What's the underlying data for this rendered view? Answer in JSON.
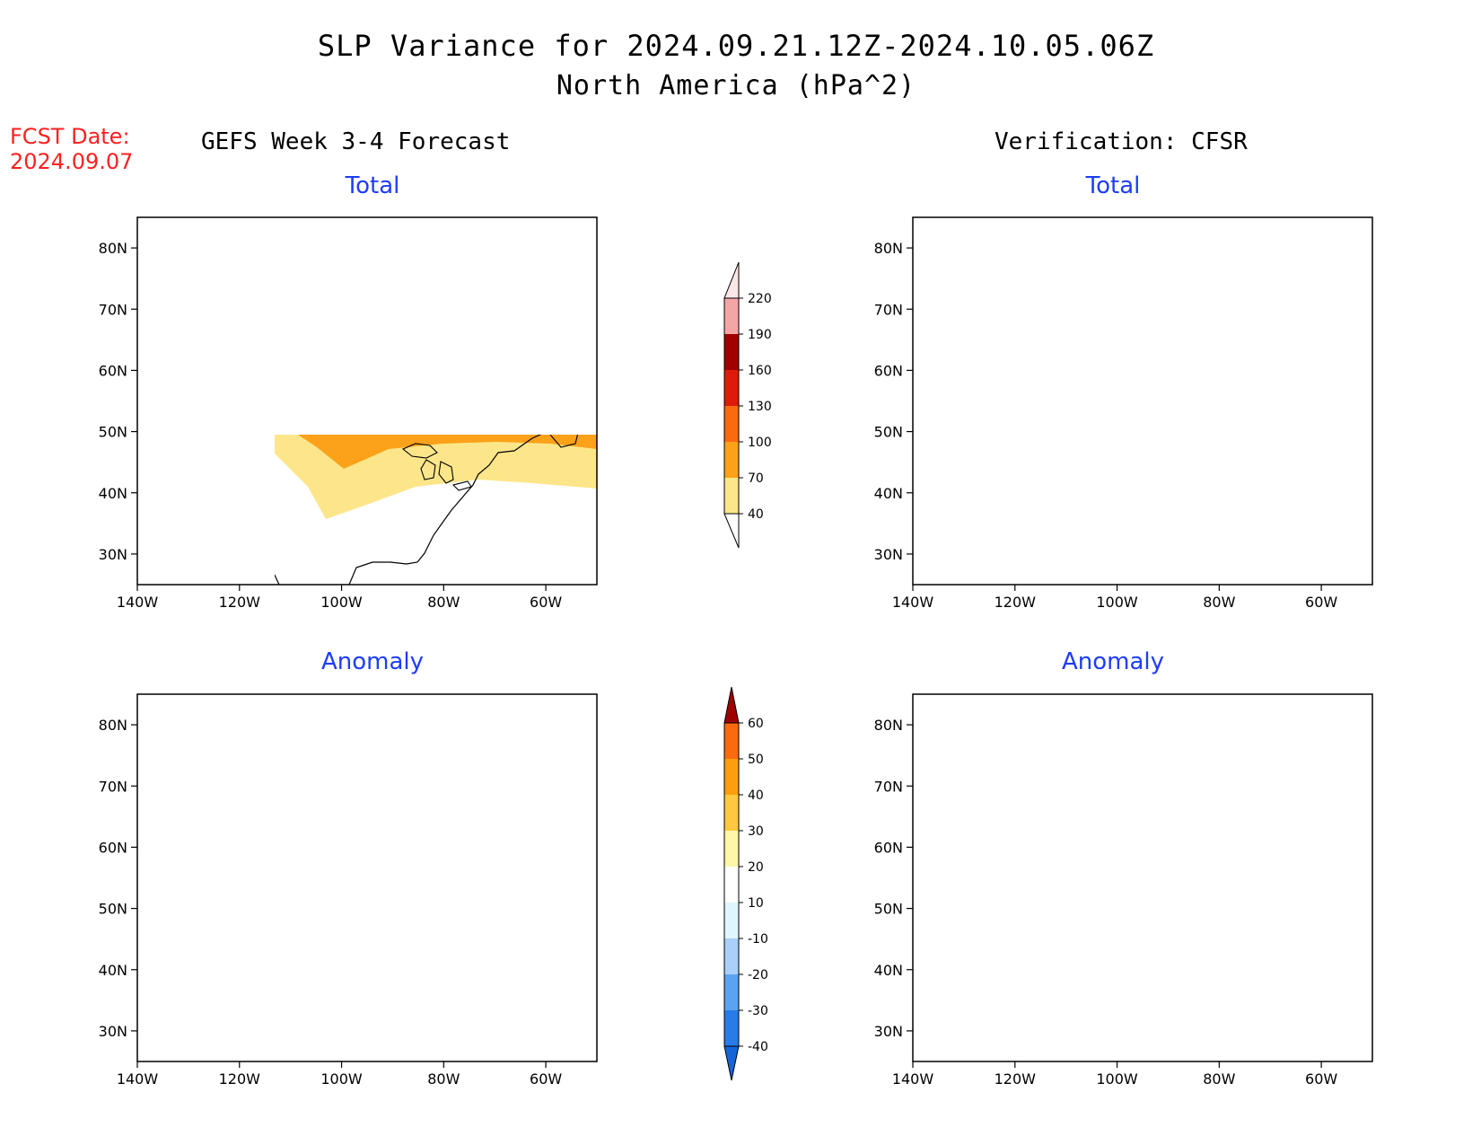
{
  "header": {
    "title": "SLP Variance for 2024.09.21.12Z-2024.10.05.06Z",
    "subtitle": "North America (hPa^2)",
    "fcst_label": "FCST Date:",
    "fcst_date": "2024.09.07"
  },
  "columns": {
    "left": "GEFS Week 3-4 Forecast",
    "right": "Verification: CFSR"
  },
  "panels": {
    "total_label": "Total",
    "anomaly_label": "Anomaly"
  },
  "map": {
    "lon_labels": [
      "140W",
      "120W",
      "100W",
      "80W",
      "60W"
    ],
    "lat_labels": [
      "30N",
      "40N",
      "50N",
      "60N",
      "70N",
      "80N"
    ],
    "lon_range": [
      -140,
      -50
    ],
    "lat_range": [
      25,
      85
    ]
  },
  "colorbars": {
    "total": {
      "levels": [
        "40",
        "70",
        "100",
        "130",
        "160",
        "190",
        "220"
      ],
      "colors": [
        "#fde68a",
        "#fba11a",
        "#fb6a10",
        "#e01a0a",
        "#a00000",
        "#f4a6a6",
        "#fde6e6"
      ]
    },
    "anomaly": {
      "levels": [
        "-40",
        "-30",
        "-20",
        "-10",
        "10",
        "20",
        "30",
        "40",
        "50",
        "60"
      ],
      "colors": [
        "#1565d8",
        "#2a7be8",
        "#5ba3f0",
        "#a8d0f8",
        "#e0f6ff",
        "#ffffff",
        "#fff6a8",
        "#ffc840",
        "#fb9e10",
        "#fb6a10",
        "#e01a0a",
        "#a00000"
      ]
    }
  }
}
